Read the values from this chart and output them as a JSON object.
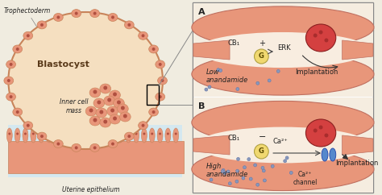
{
  "bg_color": "#f0ece0",
  "blastocyst_fill": "#f5dfc0",
  "blastocyst_edge": "#c8845a",
  "trophectoderm_color": "#e8967a",
  "trophectoderm_edge": "#c8845a",
  "cell_color": "#d4705a",
  "cell_dark": "#b05040",
  "uterine_bg": "#d4e8f0",
  "uterine_cell": "#e8967a",
  "panel_bg": "#f5ede0",
  "panel_border": "#888888",
  "tube_fill": "#e8967a",
  "tube_dark": "#c07060",
  "embryo_fill": "#d44040",
  "embryo_dark": "#8b2020",
  "g_protein_fill": "#f0d870",
  "g_protein_edge": "#b0a040",
  "ca_channel_fill": "#5588cc",
  "anandamide_dot": "#8899bb",
  "text_color": "#222222",
  "title_A": "A",
  "title_B": "B",
  "label_low": "Low\nanandamide",
  "label_high": "High\nanandamide",
  "label_implantation": "Implantation",
  "label_cb1": "CB₁",
  "label_erk": "ERK",
  "label_g": "G",
  "label_ca2plus": "Ca²⁺",
  "label_ca_channel": "Ca²⁺\nchannel",
  "blastocyst_label": "Blastocyst",
  "inner_cell_label": "Inner cell\nmass",
  "trophectoderm_label": "Trophectoderm",
  "uterine_label": "Uterine epithelium"
}
